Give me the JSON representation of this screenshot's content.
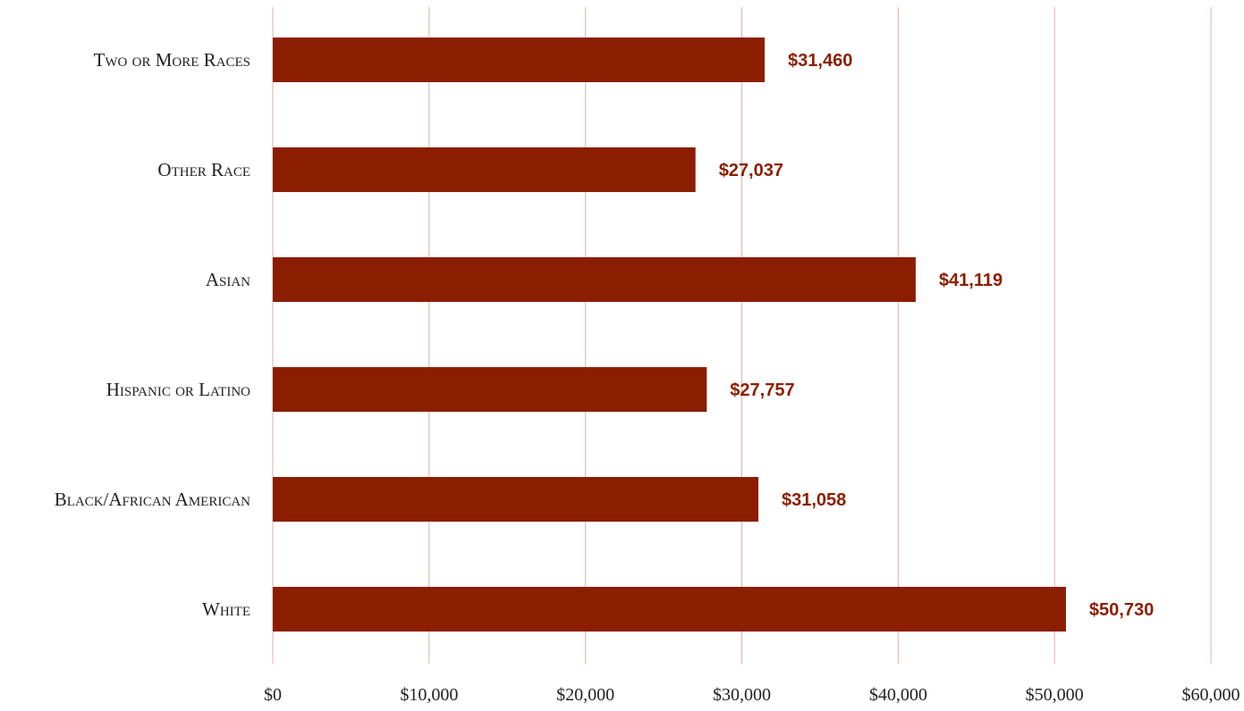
{
  "chart_data": {
    "type": "bar",
    "orientation": "horizontal",
    "title": "",
    "xlabel": "",
    "ylabel": "",
    "categories": [
      "Two or More Races",
      "Other Race",
      "Asian",
      "Hispanic or Latino",
      "Black/African American",
      "White"
    ],
    "values": [
      31460,
      27037,
      41119,
      27757,
      31058,
      50730
    ],
    "data_labels": [
      "$31,460",
      "$27,037",
      "$41,119",
      "$27,757",
      "$31,058",
      "$50,730"
    ],
    "xlim": [
      0,
      60000
    ],
    "x_ticks": [
      0,
      10000,
      20000,
      30000,
      40000,
      50000,
      60000
    ],
    "x_tick_labels": [
      "$0",
      "$10,000",
      "$20,000",
      "$30,000",
      "$40,000",
      "$50,000",
      "$60,000"
    ],
    "grid": "vertical",
    "legend": "none",
    "colors": {
      "bar": "#8b1e00",
      "gridline": "#e0b0a4",
      "label": "#8b1e00",
      "axis_text": "#222222"
    }
  }
}
